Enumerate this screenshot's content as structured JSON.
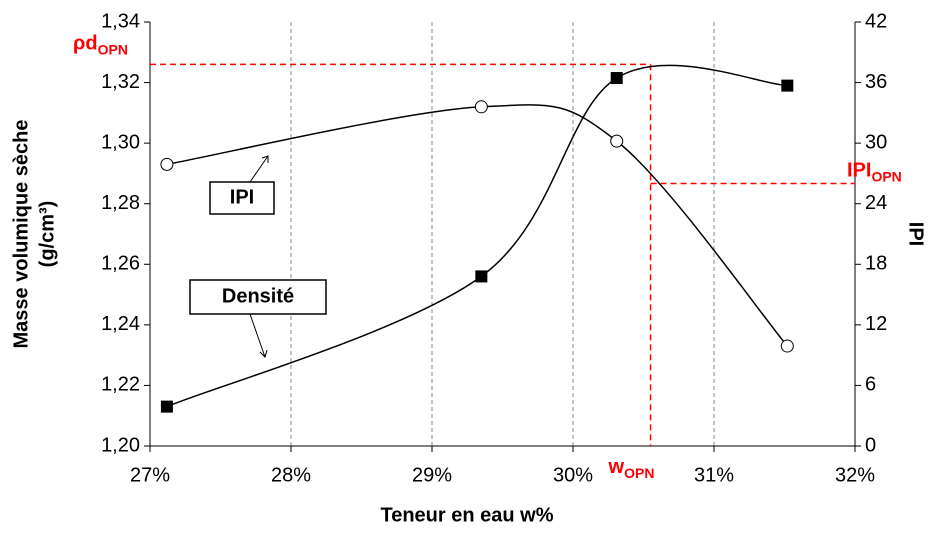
{
  "chart_data": {
    "type": "line",
    "x_label": "Teneur en eau w%",
    "y_label": "Masse volumique sèche",
    "y_label_unit": "(g/cm³)",
    "y2_label": "IPI",
    "x": [
      27.12,
      29.35,
      30.31,
      31.52
    ],
    "series": [
      {
        "name": "Densité",
        "color": "#000000",
        "marker": "square",
        "values": [
          1.213,
          1.256,
          1.3215,
          1.319
        ]
      },
      {
        "name": "IPI",
        "color": "#000000",
        "marker": "circle",
        "axis": "y2",
        "values": [
          27.9,
          33.6,
          30.2,
          9.9
        ]
      }
    ],
    "xlim": [
      27,
      32
    ],
    "xticks": [
      {
        "value": 27,
        "label": "27%"
      },
      {
        "value": 28,
        "label": "28%"
      },
      {
        "value": 29,
        "label": "29%"
      },
      {
        "value": 30,
        "label": "30%"
      },
      {
        "value": 31,
        "label": "31%"
      },
      {
        "value": 32,
        "label": "32%"
      }
    ],
    "ylim": [
      1.2,
      1.34
    ],
    "yticks": [
      {
        "value": 1.2,
        "label": "1,20"
      },
      {
        "value": 1.22,
        "label": "1,22"
      },
      {
        "value": 1.24,
        "label": "1,24"
      },
      {
        "value": 1.26,
        "label": "1,26"
      },
      {
        "value": 1.28,
        "label": "1,28"
      },
      {
        "value": 1.3,
        "label": "1,30"
      },
      {
        "value": 1.32,
        "label": "1,32"
      },
      {
        "value": 1.34,
        "label": "1,34"
      }
    ],
    "y2lim": [
      0,
      42
    ],
    "y2ticks": [
      0,
      6,
      12,
      18,
      24,
      30,
      36,
      42
    ],
    "grid": "x",
    "annotations": [
      {
        "text": "ρd",
        "sub": "OPN",
        "color": "#ff0000",
        "y": 1.326,
        "x": 30.55
      },
      {
        "text": "IPI",
        "sub": "OPN",
        "color": "#ff0000",
        "y2": 26.0,
        "x": 30.55
      },
      {
        "text": "w",
        "sub": "OPN",
        "color": "#ff0000",
        "x": 30.55
      }
    ]
  }
}
